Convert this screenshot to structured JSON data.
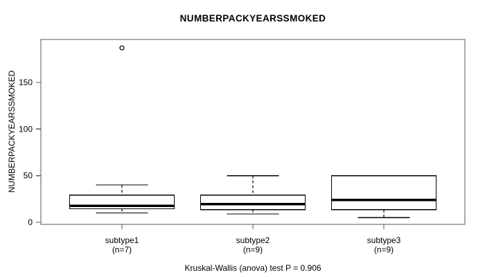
{
  "title": "NUMBERPACKYEARSSMOKED",
  "y_axis_label": "NUMBERPACKYEARSSMOKED",
  "annotation": "Kruskal-Wallis (anova) test P = 0.906",
  "chart_data": {
    "type": "boxplot",
    "title": "NUMBERPACKYEARSSMOKED",
    "ylabel": "NUMBERPACKYEARSSMOKED",
    "xlabel": "",
    "annotation": "Kruskal-Wallis (anova) test P = 0.906",
    "y_ticks": [
      0,
      50,
      100,
      150
    ],
    "ylim": [
      -2,
      196
    ],
    "grid": false,
    "legend": "none",
    "groups": [
      {
        "label": "subtype1",
        "n": 7,
        "n_label": "(n=7)",
        "whisker_low": 10,
        "q1": 14.5,
        "median": 17.5,
        "q3": 29,
        "whisker_high": 40,
        "outliers": [
          187
        ]
      },
      {
        "label": "subtype2",
        "n": 9,
        "n_label": "(n=9)",
        "whisker_low": 9,
        "q1": 13.5,
        "median": 19.5,
        "q3": 29,
        "whisker_high": 50,
        "outliers": []
      },
      {
        "label": "subtype3",
        "n": 9,
        "n_label": "(n=9)",
        "whisker_low": 5,
        "q1": 13.5,
        "median": 24,
        "q3": 50,
        "whisker_high": 50,
        "outliers": []
      }
    ],
    "colors": {
      "frame": "#555555",
      "box_stroke": "#000000",
      "box_fill": "#ffffff",
      "median": "#000000",
      "whisker": "#000000",
      "outlier": "#000000",
      "text": "#000000",
      "background": "#ffffff"
    }
  }
}
